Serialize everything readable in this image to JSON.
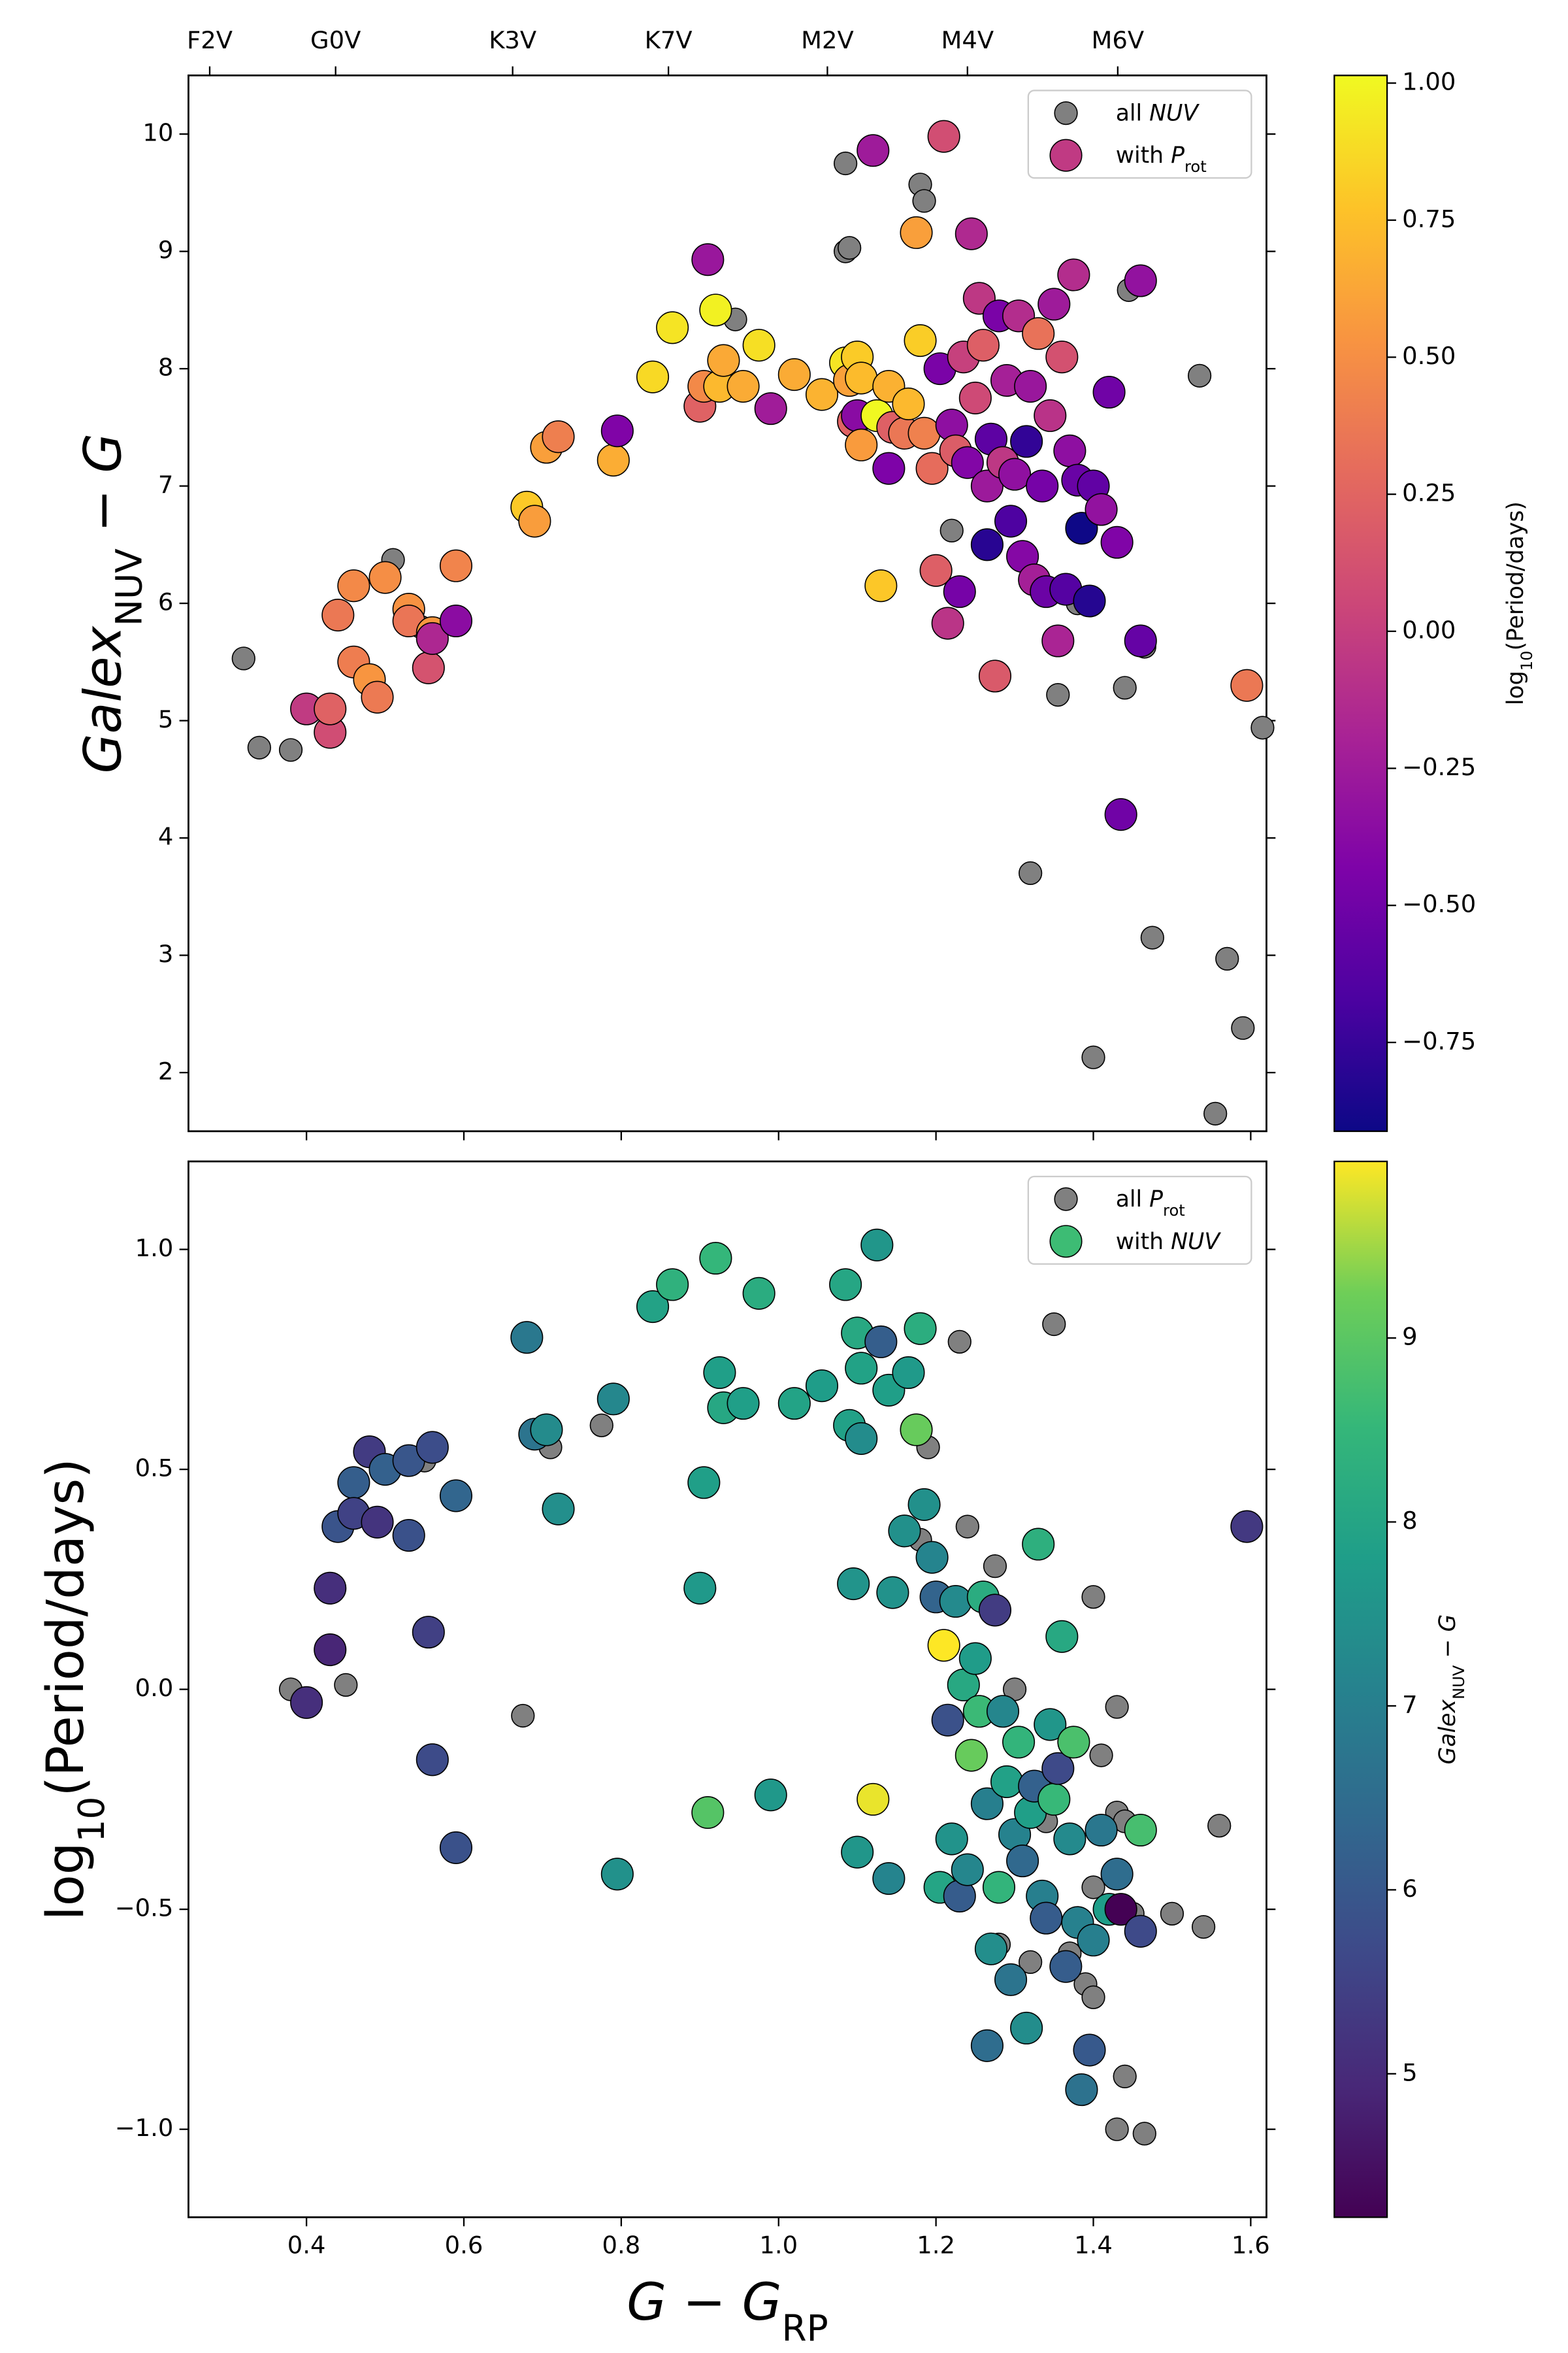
{
  "chart_data": [
    {
      "type": "scatter",
      "ylabel": [
        {
          "text": "Galex",
          "italic": true
        },
        {
          "text": "NUV",
          "sub": true
        },
        {
          "text": " − "
        },
        {
          "text": "G",
          "italic": true
        }
      ],
      "xlim": [
        0.25,
        1.62
      ],
      "ylim": [
        1.5,
        10.5
      ],
      "yticks": [
        2,
        3,
        4,
        5,
        6,
        7,
        8,
        9,
        10
      ],
      "secondary_xticks": [
        {
          "value": 0.277,
          "label": "F2V"
        },
        {
          "value": 0.437,
          "label": "G0V"
        },
        {
          "value": 0.662,
          "label": "K3V"
        },
        {
          "value": 0.86,
          "label": "K7V"
        },
        {
          "value": 1.062,
          "label": "M2V"
        },
        {
          "value": 1.24,
          "label": "M4V"
        },
        {
          "value": 1.431,
          "label": "M6V"
        }
      ],
      "legend": "upper right",
      "colormap": "plasma",
      "clabel": [
        {
          "text": "log"
        },
        {
          "text": "10",
          "sub": true
        },
        {
          "text": "(Period/days)"
        }
      ],
      "clim": [
        -0.912,
        1.014
      ],
      "cticks": [
        {
          "value": 1,
          "label": "1.00"
        },
        0.75,
        {
          "value": 0.5,
          "label": "0.50"
        },
        0.25,
        {
          "value": 0,
          "label": "0.00"
        },
        {
          "value": -0.25,
          "label": "−0.25"
        },
        {
          "value": -0.5,
          "label": "−0.50"
        },
        {
          "value": -0.75,
          "label": "−0.75"
        }
      ],
      "series": [
        {
          "name": [
            {
              "text": "all "
            },
            {
              "text": "NUV",
              "italic": true
            }
          ],
          "color": "#808080",
          "x": [
            0.32,
            0.34,
            0.38,
            0.51,
            0.545,
            0.945,
            1.085,
            1.085,
            1.09,
            1.18,
            1.185,
            1.22,
            1.28,
            1.32,
            1.355,
            1.38,
            1.4,
            1.44,
            1.445,
            1.465,
            1.475,
            1.535,
            1.555,
            1.57,
            1.59,
            1.615
          ],
          "values": [
            5.53,
            4.77,
            4.75,
            6.37,
            5.8,
            8.42,
            9.75,
            9.0,
            9.03,
            9.57,
            9.43,
            6.62,
            7.2,
            3.7,
            5.22,
            6.0,
            2.13,
            5.28,
            8.67,
            5.63,
            3.15,
            7.94,
            1.65,
            2.97,
            2.38,
            4.94
          ]
        },
        {
          "name": [
            {
              "text": "with "
            },
            {
              "text": "P",
              "italic": true
            },
            {
              "text": "rot",
              "sub": true
            }
          ],
          "color": "#c03a83",
          "x": [
            0.4,
            0.43,
            0.43,
            0.44,
            0.46,
            0.46,
            0.48,
            0.49,
            0.5,
            0.53,
            0.53,
            0.56,
            0.555,
            0.56,
            0.59,
            0.59,
            0.68,
            0.69,
            0.705,
            0.72,
            0.79,
            0.795,
            0.84,
            0.865,
            0.9,
            0.905,
            0.91,
            0.92,
            0.925,
            0.93,
            0.955,
            0.975,
            0.99,
            1.02,
            1.055,
            1.085,
            1.09,
            1.095,
            1.1,
            1.1,
            1.105,
            1.105,
            1.12,
            1.125,
            1.13,
            1.14,
            1.14,
            1.145,
            1.16,
            1.165,
            1.175,
            1.18,
            1.185,
            1.195,
            1.2,
            1.205,
            1.21,
            1.215,
            1.22,
            1.225,
            1.23,
            1.235,
            1.24,
            1.245,
            1.25,
            1.255,
            1.26,
            1.265,
            1.265,
            1.27,
            1.275,
            1.28,
            1.285,
            1.29,
            1.295,
            1.3,
            1.305,
            1.31,
            1.315,
            1.32,
            1.325,
            1.33,
            1.335,
            1.34,
            1.345,
            1.35,
            1.355,
            1.36,
            1.365,
            1.37,
            1.375,
            1.38,
            1.385,
            1.395,
            1.4,
            1.41,
            1.42,
            1.43,
            1.435,
            1.46,
            1.46,
            1.595
          ],
          "values": [
            5.1,
            4.9,
            5.1,
            5.9,
            6.15,
            5.5,
            5.35,
            5.2,
            6.22,
            5.95,
            5.85,
            5.75,
            5.45,
            5.7,
            6.32,
            5.85,
            6.82,
            6.7,
            7.33,
            7.42,
            7.22,
            7.47,
            7.93,
            8.35,
            7.68,
            7.85,
            8.93,
            8.5,
            7.85,
            8.07,
            7.85,
            8.2,
            7.66,
            7.95,
            7.78,
            8.05,
            7.9,
            7.55,
            8.1,
            7.6,
            7.92,
            7.35,
            9.86,
            7.6,
            6.15,
            7.85,
            7.15,
            7.5,
            7.45,
            7.7,
            9.16,
            8.24,
            7.45,
            7.15,
            6.28,
            8.0,
            9.98,
            5.83,
            7.52,
            7.3,
            6.1,
            8.1,
            7.2,
            9.15,
            7.75,
            8.6,
            8.2,
            7.0,
            6.5,
            7.4,
            5.38,
            8.45,
            7.2,
            7.9,
            6.7,
            7.1,
            8.45,
            6.4,
            7.38,
            7.85,
            6.2,
            8.3,
            7.0,
            6.1,
            7.6,
            8.55,
            5.68,
            8.1,
            6.12,
            7.3,
            8.8,
            7.05,
            6.64,
            6.02,
            7.0,
            6.8,
            7.8,
            6.52,
            4.2,
            5.68,
            8.75,
            5.3
          ],
          "c": [
            -0.03,
            0.09,
            0.23,
            0.37,
            0.47,
            0.4,
            0.54,
            0.38,
            0.5,
            0.52,
            0.35,
            0.55,
            0.13,
            -0.16,
            0.44,
            -0.36,
            0.8,
            0.58,
            0.59,
            0.41,
            0.66,
            -0.42,
            0.87,
            0.92,
            0.23,
            0.47,
            -0.28,
            0.98,
            0.72,
            0.64,
            0.65,
            0.9,
            -0.24,
            0.65,
            0.69,
            0.92,
            0.6,
            0.24,
            0.81,
            -0.37,
            0.73,
            0.57,
            -0.25,
            1.01,
            0.79,
            0.68,
            -0.43,
            0.22,
            0.36,
            0.72,
            0.59,
            0.82,
            0.42,
            0.3,
            0.21,
            -0.45,
            0.1,
            -0.07,
            -0.34,
            0.2,
            -0.47,
            0.01,
            -0.41,
            -0.15,
            0.07,
            -0.05,
            0.21,
            -0.26,
            -0.81,
            -0.59,
            0.18,
            -0.45,
            -0.05,
            -0.21,
            -0.66,
            -0.33,
            -0.12,
            -0.39,
            -0.77,
            -0.28,
            -0.22,
            0.33,
            -0.47,
            -0.52,
            -0.08,
            -0.25,
            -0.18,
            0.12,
            -0.63,
            -0.34,
            -0.12,
            -0.53,
            -0.91,
            -0.82,
            -0.57,
            -0.32,
            -0.5,
            -0.42,
            -0.5,
            -0.55,
            -0.32,
            0.37
          ]
        }
      ]
    },
    {
      "type": "scatter",
      "xlabel": [
        {
          "text": "G",
          "italic": true
        },
        {
          "text": " − "
        },
        {
          "text": "G",
          "italic": true
        },
        {
          "text": "RP",
          "sub": true
        }
      ],
      "ylabel": [
        {
          "text": "log"
        },
        {
          "text": "10",
          "sub": true
        },
        {
          "text": "(Period/days)"
        }
      ],
      "xlim": [
        0.25,
        1.62
      ],
      "ylim": [
        -1.2,
        1.2
      ],
      "xticks": [
        0.4,
        0.6,
        0.8,
        {
          "value": 1,
          "label": "1.0"
        },
        1.2,
        1.4,
        1.6
      ],
      "yticks": [
        {
          "value": 1,
          "label": "1.0"
        },
        0.5,
        {
          "value": 0,
          "label": "0.0"
        },
        {
          "value": -0.5,
          "label": "−0.5"
        },
        {
          "value": -1,
          "label": "−1.0"
        }
      ],
      "legend": "upper right",
      "colormap": "viridis",
      "clabel": [
        {
          "text": "Galex",
          "italic": true
        },
        {
          "text": "NUV",
          "sub": true
        },
        {
          "text": " − "
        },
        {
          "text": "G",
          "italic": true
        }
      ],
      "clim": [
        4.22,
        9.96
      ],
      "cticks": [
        5,
        6,
        7,
        8,
        9
      ],
      "series": [
        {
          "name": [
            {
              "text": "all "
            },
            {
              "text": "P",
              "italic": true
            },
            {
              "text": "rot",
              "sub": true
            }
          ],
          "color": "#808080",
          "x": [
            0.38,
            0.45,
            0.55,
            0.675,
            0.71,
            0.775,
            1.18,
            1.19,
            1.23,
            1.24,
            1.275,
            1.28,
            1.3,
            1.32,
            1.34,
            1.35,
            1.37,
            1.39,
            1.4,
            1.4,
            1.4,
            1.41,
            1.43,
            1.43,
            1.43,
            1.44,
            1.44,
            1.45,
            1.465,
            1.5,
            1.54,
            1.56
          ],
          "values": [
            0.0,
            0.01,
            0.52,
            -0.06,
            0.55,
            0.6,
            0.34,
            0.55,
            0.79,
            0.37,
            0.28,
            -0.58,
            0.0,
            -0.62,
            -0.3,
            0.83,
            -0.6,
            -0.67,
            0.21,
            -0.45,
            -0.7,
            -0.15,
            -0.04,
            -0.28,
            -1.0,
            -0.3,
            -0.88,
            -0.51,
            -1.01,
            -0.51,
            -0.54,
            -0.31
          ]
        },
        {
          "name": [
            {
              "text": "with "
            },
            {
              "text": "NUV",
              "italic": true
            }
          ],
          "color": "#3dbc74",
          "x": [
            0.4,
            0.43,
            0.43,
            0.44,
            0.46,
            0.46,
            0.48,
            0.49,
            0.5,
            0.53,
            0.53,
            0.56,
            0.555,
            0.56,
            0.59,
            0.59,
            0.68,
            0.69,
            0.705,
            0.72,
            0.79,
            0.795,
            0.84,
            0.865,
            0.9,
            0.905,
            0.91,
            0.92,
            0.925,
            0.93,
            0.955,
            0.975,
            0.99,
            1.02,
            1.055,
            1.085,
            1.09,
            1.095,
            1.1,
            1.1,
            1.105,
            1.105,
            1.12,
            1.125,
            1.13,
            1.14,
            1.14,
            1.145,
            1.16,
            1.165,
            1.175,
            1.18,
            1.185,
            1.195,
            1.2,
            1.205,
            1.21,
            1.215,
            1.22,
            1.225,
            1.23,
            1.235,
            1.24,
            1.245,
            1.25,
            1.255,
            1.26,
            1.265,
            1.265,
            1.27,
            1.275,
            1.28,
            1.285,
            1.29,
            1.295,
            1.3,
            1.305,
            1.31,
            1.315,
            1.32,
            1.325,
            1.33,
            1.335,
            1.34,
            1.345,
            1.35,
            1.355,
            1.36,
            1.365,
            1.37,
            1.375,
            1.38,
            1.385,
            1.395,
            1.4,
            1.41,
            1.42,
            1.43,
            1.435,
            1.46,
            1.46,
            1.595
          ],
          "values": [
            -0.03,
            0.09,
            0.23,
            0.37,
            0.47,
            0.4,
            0.54,
            0.38,
            0.5,
            0.52,
            0.35,
            0.55,
            0.13,
            -0.16,
            0.44,
            -0.36,
            0.8,
            0.58,
            0.59,
            0.41,
            0.66,
            -0.42,
            0.87,
            0.92,
            0.23,
            0.47,
            -0.28,
            0.98,
            0.72,
            0.64,
            0.65,
            0.9,
            -0.24,
            0.65,
            0.69,
            0.92,
            0.6,
            0.24,
            0.81,
            -0.37,
            0.73,
            0.57,
            -0.25,
            1.01,
            0.79,
            0.68,
            -0.43,
            0.22,
            0.36,
            0.72,
            0.59,
            0.82,
            0.42,
            0.3,
            0.21,
            -0.45,
            0.1,
            -0.07,
            -0.34,
            0.2,
            -0.47,
            0.01,
            -0.41,
            -0.15,
            0.07,
            -0.05,
            0.21,
            -0.26,
            -0.81,
            -0.59,
            0.18,
            -0.45,
            -0.05,
            -0.21,
            -0.66,
            -0.33,
            -0.12,
            -0.39,
            -0.77,
            -0.28,
            -0.22,
            0.33,
            -0.47,
            -0.52,
            -0.08,
            -0.25,
            -0.18,
            0.12,
            -0.63,
            -0.34,
            -0.12,
            -0.53,
            -0.91,
            -0.82,
            -0.57,
            -0.32,
            -0.5,
            -0.42,
            -0.5,
            -0.55,
            -0.32,
            0.37
          ],
          "c": [
            5.1,
            4.9,
            5.1,
            5.9,
            6.15,
            5.5,
            5.35,
            5.2,
            6.22,
            5.95,
            5.85,
            5.75,
            5.45,
            5.7,
            6.32,
            5.85,
            6.82,
            6.7,
            7.33,
            7.42,
            7.22,
            7.47,
            7.93,
            8.35,
            7.68,
            7.85,
            8.93,
            8.5,
            7.85,
            8.07,
            7.85,
            8.2,
            7.66,
            7.95,
            7.78,
            8.05,
            7.9,
            7.55,
            8.1,
            7.6,
            7.92,
            7.35,
            9.86,
            7.6,
            6.15,
            7.85,
            7.15,
            7.5,
            7.45,
            7.7,
            9.16,
            8.24,
            7.45,
            7.15,
            6.28,
            8.0,
            9.98,
            5.83,
            7.52,
            7.3,
            6.1,
            8.1,
            7.2,
            9.15,
            7.75,
            8.6,
            8.2,
            7.0,
            6.5,
            7.4,
            5.38,
            8.45,
            7.2,
            7.9,
            6.7,
            7.1,
            8.45,
            6.4,
            7.38,
            7.85,
            6.2,
            8.3,
            7.0,
            6.1,
            7.6,
            8.55,
            5.68,
            8.1,
            6.12,
            7.3,
            8.8,
            7.05,
            6.64,
            6.02,
            7.0,
            6.8,
            7.8,
            6.52,
            4.2,
            5.68,
            8.75,
            5.3
          ]
        }
      ]
    }
  ]
}
